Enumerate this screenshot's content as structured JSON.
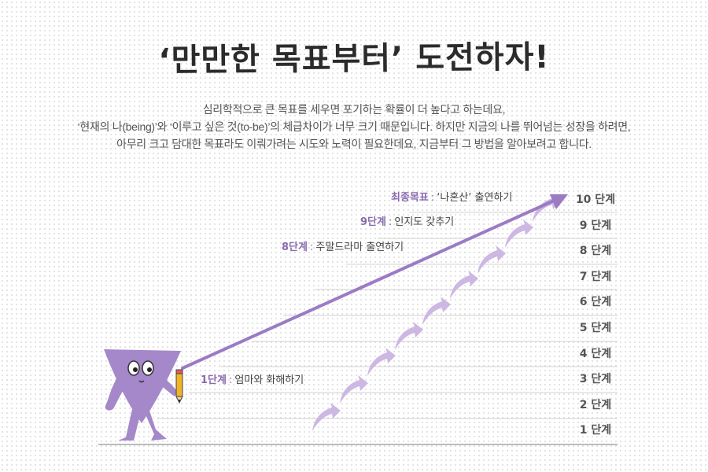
{
  "title": "‘만만한 목표부터’ 도전하자!",
  "intro_lines": [
    "심리학적으로 큰 목표를 세우면 포기하는 확률이 더 높다고 하는데요,",
    "‘현재의 나(being)’와 ‘이루고 싶은 것(to-be)’의 체급차이가 너무 크기 때문입니다. 하지만 지금의 나를 뛰어넘는 성장을 하려면,",
    "아무리 크고 담대한 목표라도 이뤄가려는 시도와 노력이 필요한데요, 지금부터 그 방법을 알아보려고 합니다."
  ],
  "steps": [
    "10 단계",
    "9 단계",
    "8 단계",
    "7 단계",
    "6 단계",
    "5 단계",
    "4 단계",
    "3 단계",
    "2 단계",
    "1 단계"
  ],
  "milestones": {
    "final": {
      "level": "최종목표",
      "text": "‘나혼산’ 출연하기"
    },
    "step9": {
      "level": "9단계",
      "text": "인지도 갖추기"
    },
    "step8": {
      "level": "8단계",
      "text": "주말드라마 출연하기"
    },
    "step1": {
      "level": "1단계",
      "text": "엄마와 화해하기"
    }
  },
  "colors": {
    "accent": "#9b7bc4",
    "accent_light": "#cdb7e3",
    "label_purple": "#8a6bb0",
    "character": "#a488c9",
    "pencil": "#f0b429"
  }
}
